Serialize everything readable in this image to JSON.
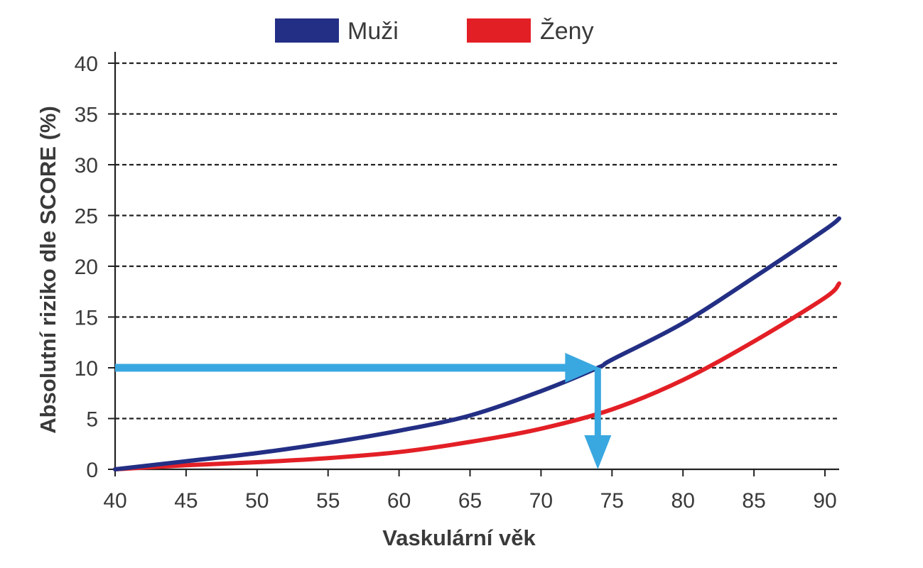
{
  "chart_data": {
    "type": "line",
    "xlabel": "Vaskulární věk",
    "ylabel": "Absolutní riziko dle SCORE (%)",
    "xlim": [
      40,
      91
    ],
    "ylim": [
      0,
      40
    ],
    "x_ticks": [
      "40",
      "45",
      "50",
      "55",
      "60",
      "65",
      "70",
      "75",
      "80",
      "85",
      "90"
    ],
    "y_ticks": [
      "0",
      "5",
      "10",
      "15",
      "20",
      "25",
      "30",
      "35",
      "40"
    ],
    "grid": "horizontal dashed",
    "legend_position": "top",
    "series": [
      {
        "name": "Muži",
        "color": "#232f84",
        "x": [
          40,
          45,
          50,
          55,
          60,
          65,
          70,
          74,
          75,
          80,
          85,
          90,
          91
        ],
        "y": [
          0,
          0.8,
          1.6,
          2.6,
          3.8,
          5.3,
          7.7,
          10,
          10.8,
          14.4,
          18.9,
          23.6,
          24.7
        ]
      },
      {
        "name": "Ženy",
        "color": "#e31f26",
        "x": [
          40,
          45,
          50,
          55,
          60,
          65,
          70,
          75,
          80,
          85,
          90,
          91
        ],
        "y": [
          0,
          0.4,
          0.7,
          1.1,
          1.7,
          2.7,
          4.0,
          5.9,
          8.8,
          12.6,
          16.9,
          18.3
        ]
      }
    ],
    "annotation": {
      "color": "#3aa8e0",
      "y_value": 10,
      "x_value": 74
    }
  }
}
